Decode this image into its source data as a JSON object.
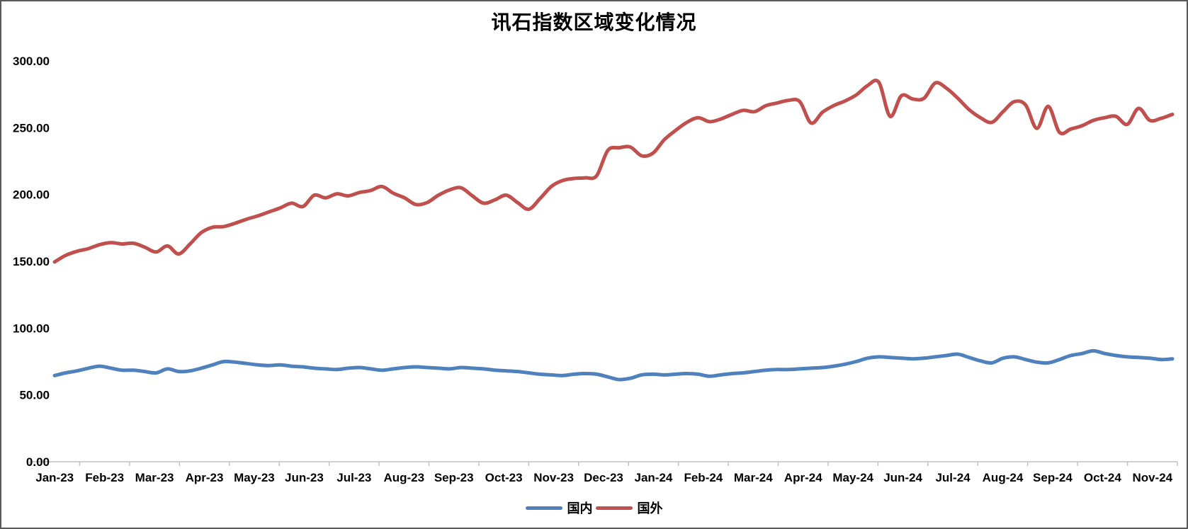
{
  "chart_data": {
    "type": "line",
    "title": "讯石指数区域变化情况",
    "x_tick_labels": [
      "Jan-23",
      "Feb-23",
      "Mar-23",
      "Apr-23",
      "May-23",
      "Jun-23",
      "Jul-23",
      "Aug-23",
      "Sep-23",
      "Oct-23",
      "Nov-23",
      "Dec-23",
      "Jan-24",
      "Feb-24",
      "Mar-24",
      "Apr-24",
      "May-24",
      "Jun-24",
      "Jul-24",
      "Aug-24",
      "Sep-24",
      "Oct-24",
      "Nov-24"
    ],
    "y_tick_labels": [
      "0.00",
      "50.00",
      "100.00",
      "150.00",
      "200.00",
      "250.00",
      "300.00"
    ],
    "y_tick_values": [
      0,
      50,
      100,
      150,
      200,
      250,
      300
    ],
    "ylim": [
      0,
      300
    ],
    "grid": false,
    "legend_position": "bottom",
    "smoothed_lines": true,
    "series": [
      {
        "name": "国内",
        "color": "#4F81BD",
        "values": [
          64.5,
          66.5,
          68,
          70,
          71.5,
          70,
          68.5,
          68.5,
          67.5,
          66.5,
          69.5,
          67.5,
          68,
          70,
          72.5,
          75,
          74.5,
          73.5,
          72.5,
          72,
          72.5,
          71.5,
          71,
          70,
          69.5,
          69,
          70,
          70.5,
          69.5,
          68.5,
          69.5,
          70.5,
          71,
          70.5,
          70,
          69.5,
          70.5,
          70,
          69.5,
          68.5,
          68,
          67.5,
          66.5,
          65.5,
          65,
          64.5,
          65.5,
          66,
          65.5,
          63.5,
          61.5,
          62.5,
          65,
          65.5,
          65,
          65.5,
          66,
          65.5,
          64,
          65,
          66,
          66.5,
          67.5,
          68.5,
          69,
          69,
          69.5,
          70,
          70.5,
          71.5,
          73,
          75,
          77.5,
          78.5,
          78,
          77.5,
          77,
          77.5,
          78.5,
          79.5,
          80.5,
          78,
          75.5,
          74,
          77.5,
          78.5,
          76.5,
          74.5,
          74,
          76.5,
          79.5,
          81,
          83,
          81,
          79.5,
          78.5,
          78,
          77.5,
          76.5,
          77
        ]
      },
      {
        "name": "国外",
        "color": "#C0504D",
        "values": [
          149.5,
          154.5,
          157.5,
          159.5,
          162.5,
          164,
          163,
          163.5,
          160.5,
          157,
          161.5,
          155.5,
          163,
          171.5,
          175.5,
          176,
          178.5,
          181.5,
          184,
          187,
          190,
          193.5,
          191,
          199.5,
          197.5,
          200.5,
          199,
          201.5,
          203,
          206,
          201,
          197.5,
          192.5,
          194,
          199.5,
          203.5,
          205,
          199,
          193.5,
          196,
          199.5,
          194,
          189,
          197,
          206,
          210.5,
          212,
          212.5,
          214,
          233,
          235,
          235.5,
          229,
          231,
          241,
          248,
          254,
          257.5,
          254.5,
          256.5,
          260,
          263,
          262,
          266.5,
          268.5,
          270.5,
          269.5,
          253.5,
          261.5,
          266.5,
          270,
          274.5,
          281.5,
          284,
          258.5,
          274,
          271.5,
          272,
          283.5,
          279.5,
          272,
          263.5,
          257.5,
          254,
          262,
          269.5,
          267,
          249.5,
          266,
          246.5,
          249,
          251.5,
          255.5,
          257.5,
          258.5,
          252.5,
          264.5,
          255.5,
          257,
          260
        ]
      }
    ]
  },
  "colors": {
    "axis": "#BFBFBF",
    "label_text": "#000000",
    "border": "#595959",
    "background": "#FFFFFF"
  }
}
